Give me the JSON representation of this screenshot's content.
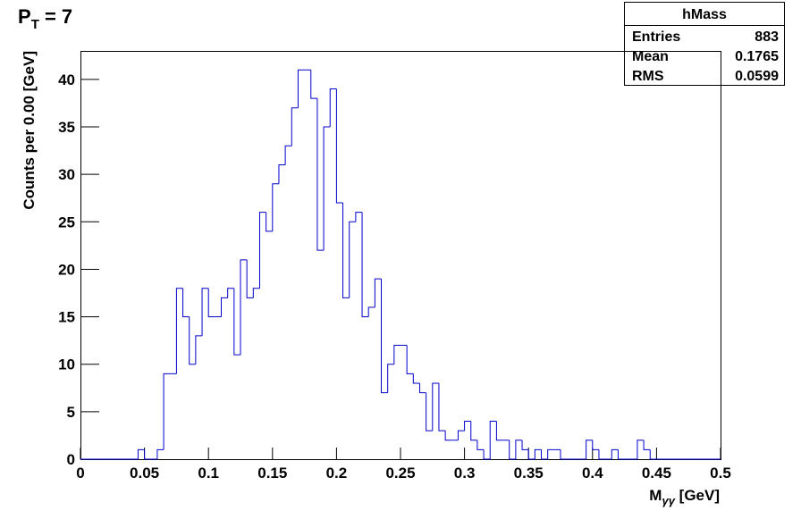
{
  "chart_data": {
    "type": "histogram",
    "title": {
      "main": "P",
      "sub": "T",
      "tail": " = 7"
    },
    "x_label": {
      "main": "M",
      "sub": "γγ",
      "tail": " [GeV]"
    },
    "y_label": "Counts per 0.00 [GeV]",
    "color": "#0000cc",
    "bins": [
      0,
      0.005,
      0.01,
      0.015,
      0.02,
      0.025,
      0.03,
      0.035,
      0.04,
      0.045,
      0.05,
      0.055,
      0.06,
      0.065,
      0.07,
      0.075,
      0.08,
      0.085,
      0.09,
      0.095,
      0.1,
      0.105,
      0.11,
      0.115,
      0.12,
      0.125,
      0.13,
      0.135,
      0.14,
      0.145,
      0.15,
      0.155,
      0.16,
      0.165,
      0.17,
      0.175,
      0.18,
      0.185,
      0.19,
      0.195,
      0.2,
      0.205,
      0.21,
      0.215,
      0.22,
      0.225,
      0.23,
      0.235,
      0.24,
      0.245,
      0.25,
      0.255,
      0.26,
      0.265,
      0.27,
      0.275,
      0.28,
      0.285,
      0.29,
      0.295,
      0.3,
      0.305,
      0.31,
      0.315,
      0.32,
      0.325,
      0.33,
      0.335,
      0.34,
      0.345,
      0.35,
      0.355,
      0.36,
      0.365,
      0.37,
      0.375,
      0.38,
      0.385,
      0.39,
      0.395,
      0.4,
      0.405,
      0.41,
      0.415,
      0.42,
      0.425,
      0.43,
      0.435,
      0.44,
      0.445,
      0.45,
      0.455,
      0.46,
      0.465,
      0.47,
      0.475,
      0.48,
      0.485,
      0.49,
      0.495,
      0.5
    ],
    "values": [
      0,
      0,
      0,
      0,
      0,
      0,
      0,
      0,
      0,
      1,
      0,
      0,
      1,
      9,
      9,
      18,
      15,
      10,
      13,
      18,
      15,
      15,
      17,
      18,
      11,
      21,
      17,
      18,
      26,
      24,
      29,
      31,
      33,
      37,
      41,
      41,
      38,
      22,
      35,
      39,
      27,
      17,
      25,
      26,
      15,
      16,
      19,
      7,
      10,
      12,
      12,
      9,
      8,
      7,
      3,
      8,
      3,
      2,
      2,
      3,
      4,
      2,
      1,
      0,
      4,
      2,
      2,
      0,
      2,
      1,
      0,
      1,
      0,
      1,
      1,
      0,
      0,
      0,
      0,
      2,
      1,
      0,
      0,
      1,
      0,
      0,
      0,
      2,
      1,
      0,
      0,
      0,
      0,
      0,
      0,
      0,
      0,
      0,
      0,
      0
    ],
    "xlim": [
      0,
      0.5
    ],
    "xticks": [
      0,
      0.05,
      0.1,
      0.15,
      0.2,
      0.25,
      0.3,
      0.35,
      0.4,
      0.45,
      0.5
    ],
    "ylim": [
      0,
      43
    ],
    "yticks": [
      0,
      5,
      10,
      15,
      20,
      25,
      30,
      35,
      40
    ],
    "stats": {
      "title": "hMass",
      "rows": [
        [
          "Entries",
          883
        ],
        [
          "Mean",
          0.1765
        ],
        [
          "RMS",
          0.0599
        ]
      ]
    }
  }
}
